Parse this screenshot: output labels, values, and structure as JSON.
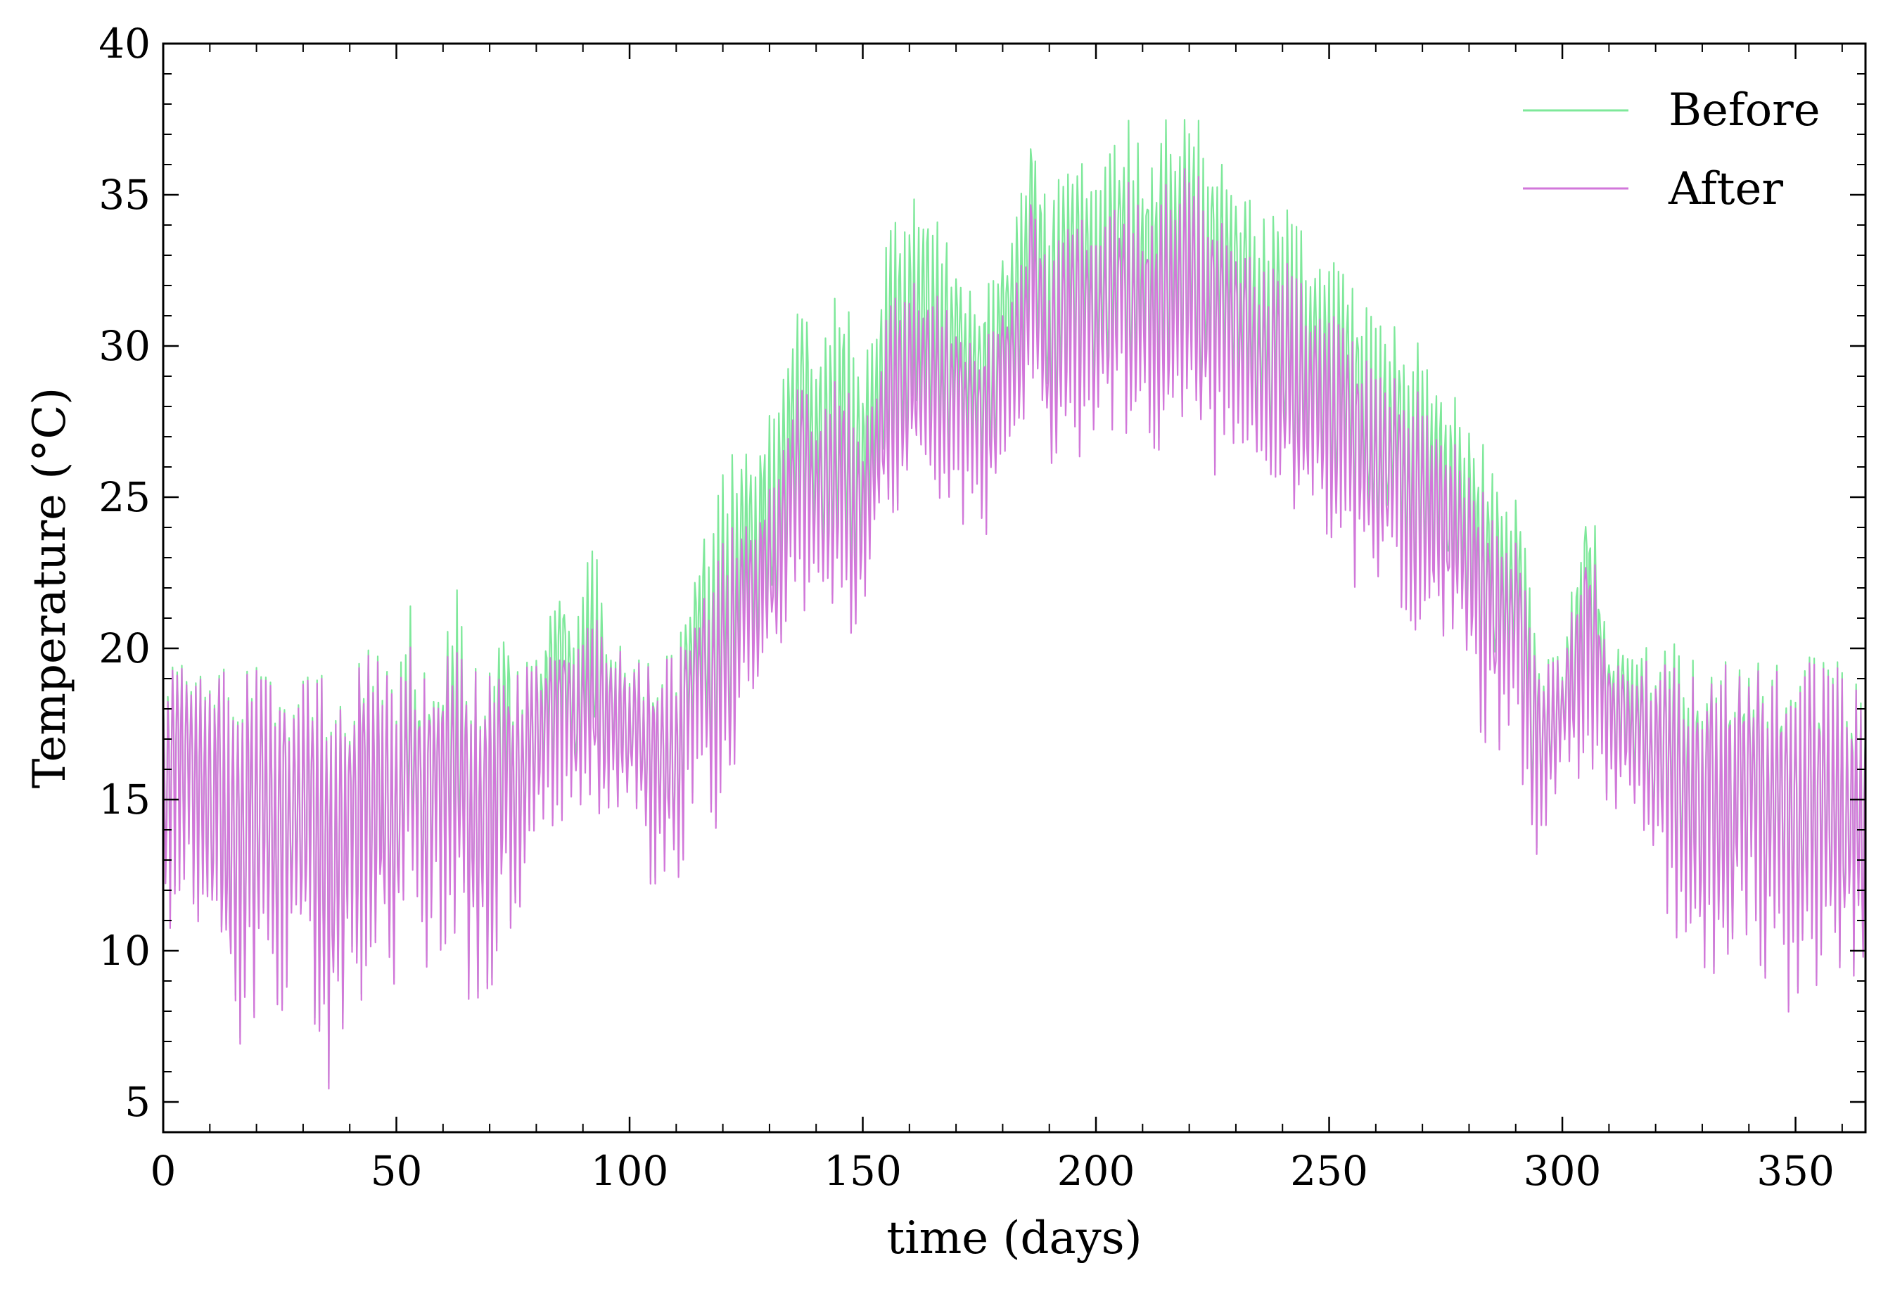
{
  "chart_data": {
    "type": "line",
    "title": "",
    "xlabel": "time (days)",
    "ylabel": "Temperature ($^\\circ$C)",
    "ylabel_display": "Temperature (°C)",
    "xlim": [
      0,
      365
    ],
    "ylim": [
      4,
      40
    ],
    "xticks": [
      0,
      50,
      100,
      150,
      200,
      250,
      300,
      350
    ],
    "yticks": [
      5,
      10,
      15,
      20,
      25,
      30,
      35,
      40
    ],
    "xtick_labels": [
      "0",
      "50",
      "100",
      "150",
      "200",
      "250",
      "300",
      "350"
    ],
    "ytick_labels": [
      "5",
      "10",
      "15",
      "20",
      "25",
      "30",
      "35",
      "40"
    ],
    "grid": false,
    "legend_position": "top-right",
    "note": "Hourly temperature series over one year; values below are sampled envelope points (daily max / min) read from the figure.",
    "series": [
      {
        "name": "Before",
        "color": "#7ee89a",
        "x": [
          0,
          2,
          5,
          10,
          15,
          20,
          25,
          30,
          35,
          40,
          45,
          50,
          53,
          55,
          60,
          63,
          65,
          70,
          74,
          75,
          80,
          85,
          88,
          92,
          95,
          100,
          105,
          110,
          115,
          120,
          125,
          130,
          135,
          137,
          140,
          143,
          145,
          150,
          155,
          160,
          163,
          165,
          170,
          175,
          180,
          185,
          186,
          190,
          195,
          200,
          205,
          207,
          210,
          215,
          219,
          220,
          225,
          230,
          235,
          240,
          245,
          250,
          255,
          260,
          265,
          270,
          275,
          280,
          285,
          290,
          293,
          295,
          300,
          305,
          307,
          310,
          315,
          320,
          325,
          330,
          335,
          340,
          345,
          350,
          355,
          360,
          365
        ],
        "max": [
          20,
          19.8,
          19.7,
          19.6,
          19.5,
          19.6,
          19.7,
          19.6,
          19.7,
          19.6,
          20.1,
          19.5,
          21.7,
          19.8,
          19.8,
          22.1,
          19.7,
          19.7,
          21.9,
          19.6,
          19.9,
          23.4,
          20.8,
          24.3,
          20.5,
          19.8,
          19.8,
          19.8,
          24.1,
          25.9,
          27.2,
          27.9,
          30.5,
          32.4,
          30.6,
          30.5,
          33.0,
          29.4,
          33.6,
          35.1,
          36.5,
          34.6,
          33.0,
          32.2,
          33.6,
          35.8,
          38.2,
          35.2,
          36.7,
          36.6,
          36.8,
          38.3,
          36.0,
          37.8,
          38.6,
          38.2,
          36.8,
          36.0,
          34.3,
          34.8,
          34.0,
          33.6,
          32.1,
          31.7,
          30.5,
          30.0,
          29.0,
          27.9,
          26.8,
          25.4,
          22.5,
          20.0,
          19.8,
          25.9,
          24.1,
          20.1,
          20.9,
          19.7,
          20.6,
          19.9,
          19.6,
          19.9,
          19.6,
          19.8,
          19.7,
          19.6,
          19.6
        ],
        "min": [
          10,
          10.5,
          11.3,
          10.2,
          5.8,
          8.2,
          6.6,
          8.7,
          4.8,
          7.1,
          9.6,
          8.7,
          12.0,
          9.4,
          10.2,
          10.8,
          8.6,
          7.6,
          12.0,
          9.1,
          13.3,
          14.5,
          14.2,
          15.1,
          14.1,
          15.0,
          12.0,
          12.1,
          15.4,
          13.6,
          17.7,
          19.3,
          21.1,
          21.0,
          22.2,
          21.6,
          21.1,
          19.7,
          24.6,
          24.8,
          24.3,
          25.0,
          24.7,
          23.1,
          25.8,
          27.7,
          28.6,
          25.4,
          26.1,
          26.1,
          27.5,
          26.8,
          28.0,
          24.9,
          28.2,
          27.2,
          25.6,
          26.1,
          25.4,
          25.2,
          23.9,
          23.7,
          22.0,
          22.1,
          21.9,
          18.4,
          20.7,
          18.5,
          16.3,
          16.9,
          13.8,
          12.7,
          15.6,
          15.1,
          15.3,
          14.8,
          14.6,
          12.0,
          10.0,
          8.4,
          9.3,
          10.4,
          7.9,
          7.6,
          9.2,
          8.6,
          7.0
        ]
      },
      {
        "name": "After",
        "color": "#d277da",
        "x": [
          0,
          2,
          5,
          10,
          15,
          20,
          25,
          30,
          35,
          40,
          45,
          50,
          53,
          55,
          60,
          63,
          65,
          70,
          74,
          75,
          80,
          85,
          88,
          92,
          95,
          100,
          105,
          110,
          115,
          120,
          125,
          130,
          135,
          137,
          140,
          143,
          145,
          150,
          155,
          160,
          163,
          165,
          170,
          175,
          180,
          185,
          186,
          190,
          195,
          200,
          205,
          207,
          210,
          215,
          219,
          220,
          225,
          230,
          235,
          240,
          245,
          250,
          255,
          260,
          265,
          270,
          275,
          280,
          285,
          290,
          293,
          295,
          300,
          305,
          307,
          310,
          315,
          320,
          325,
          330,
          335,
          340,
          345,
          350,
          355,
          360,
          365
        ],
        "max": [
          19.8,
          19.7,
          19.6,
          19.5,
          19.4,
          19.5,
          19.6,
          19.5,
          19.6,
          19.5,
          19.9,
          19.4,
          20.3,
          19.6,
          19.6,
          20.0,
          19.6,
          19.6,
          19.8,
          19.5,
          19.7,
          21.0,
          20.2,
          21.4,
          20.2,
          19.7,
          19.7,
          19.7,
          22.0,
          23.6,
          24.6,
          25.4,
          28.0,
          29.7,
          28.1,
          28.1,
          29.8,
          27.2,
          31.1,
          32.5,
          32.8,
          32.0,
          30.9,
          30.5,
          31.6,
          33.2,
          36.0,
          33.0,
          34.8,
          34.5,
          34.6,
          36.1,
          34.0,
          35.6,
          36.8,
          36.4,
          34.8,
          33.9,
          32.5,
          33.0,
          32.2,
          31.7,
          30.3,
          29.8,
          28.8,
          28.4,
          27.4,
          26.3,
          25.1,
          23.9,
          21.1,
          19.8,
          19.7,
          24.3,
          22.8,
          19.8,
          19.9,
          19.6,
          19.6,
          19.6,
          19.5,
          19.6,
          19.4,
          19.6,
          19.5,
          19.4,
          19.4
        ],
        "min": [
          9.8,
          10.2,
          11.1,
          10.0,
          5.6,
          8.0,
          6.4,
          8.5,
          4.6,
          6.9,
          9.4,
          8.5,
          11.8,
          9.2,
          10.0,
          10.6,
          8.4,
          7.4,
          11.8,
          8.9,
          13.1,
          14.3,
          14.0,
          14.9,
          13.9,
          14.8,
          11.8,
          11.9,
          15.2,
          13.4,
          17.5,
          19.1,
          20.9,
          20.8,
          22.0,
          21.4,
          20.9,
          19.5,
          24.4,
          24.6,
          24.1,
          24.8,
          24.5,
          22.9,
          25.6,
          27.5,
          28.4,
          25.2,
          25.9,
          25.9,
          27.3,
          26.6,
          27.8,
          24.7,
          28.0,
          27.0,
          25.4,
          25.9,
          25.2,
          25.0,
          23.7,
          23.5,
          21.8,
          21.9,
          21.7,
          18.2,
          20.5,
          18.3,
          16.1,
          16.7,
          13.6,
          12.5,
          15.4,
          14.9,
          15.1,
          14.6,
          14.4,
          11.8,
          9.8,
          8.2,
          9.1,
          10.2,
          7.7,
          7.4,
          9.0,
          8.4,
          6.8
        ]
      }
    ]
  }
}
